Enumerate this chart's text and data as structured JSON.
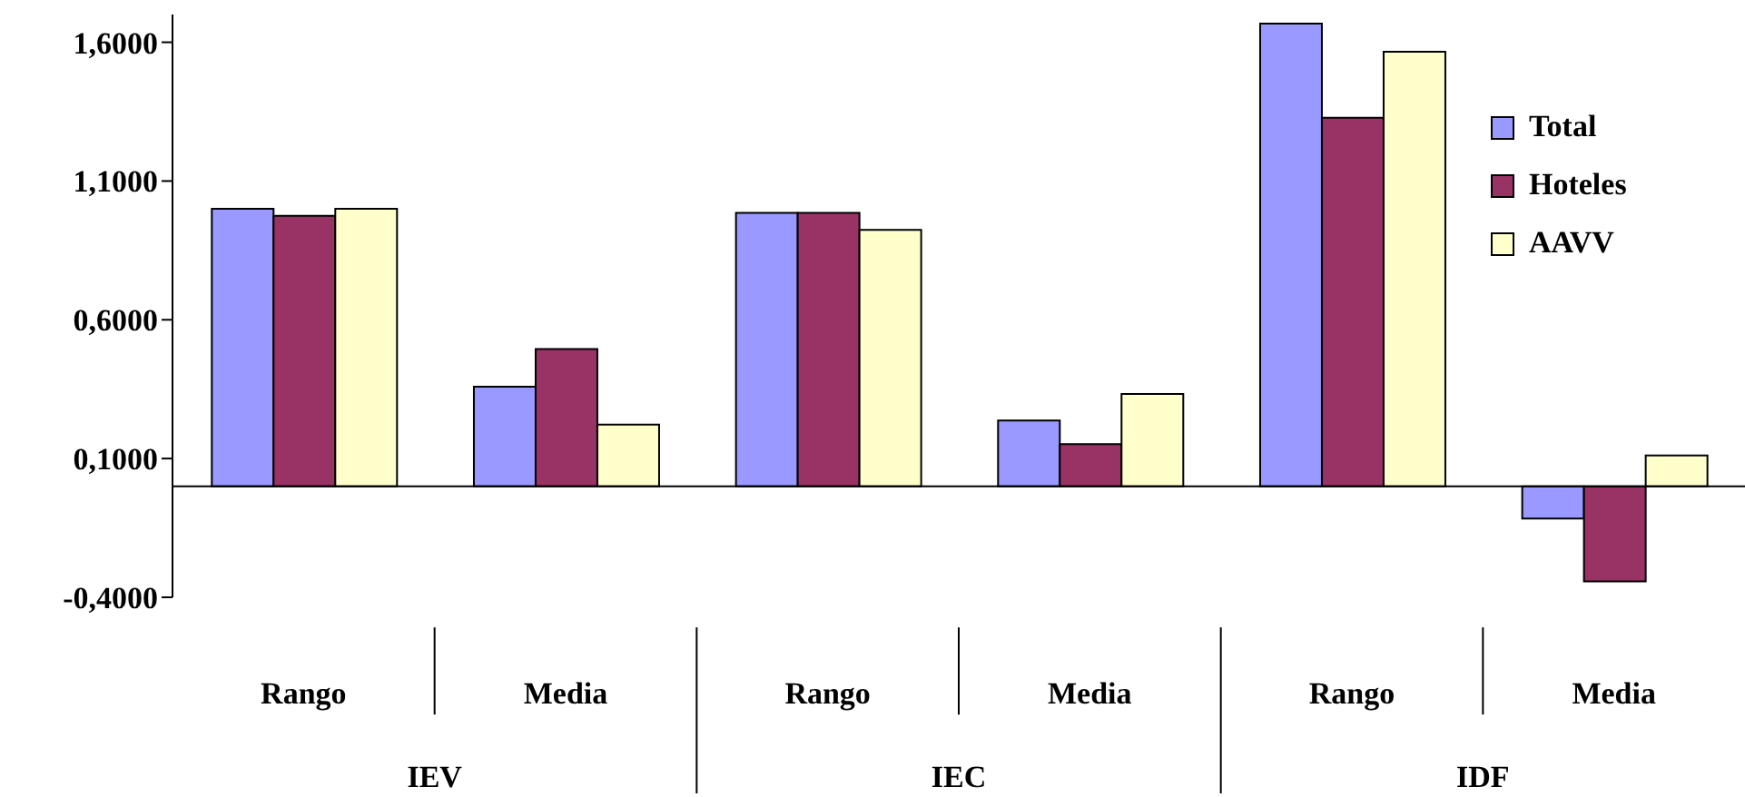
{
  "chart_data": {
    "type": "bar",
    "categories": [
      "Rango",
      "Media",
      "Rango",
      "Media",
      "Rango",
      "Media"
    ],
    "annotations": [
      "IEV",
      "IEC",
      "IDF"
    ],
    "series": [
      {
        "name": "Total",
        "color": "#9999ff",
        "values": [
          1.0,
          0.359,
          0.985,
          0.237,
          1.667,
          -0.116
        ]
      },
      {
        "name": "Hoteles",
        "color": "#993366",
        "values": [
          0.975,
          0.495,
          0.985,
          0.152,
          1.328,
          -0.343
        ]
      },
      {
        "name": "AAVV",
        "color": "#ffffcc",
        "values": [
          1.0,
          0.222,
          0.924,
          0.333,
          1.566,
          0.111
        ]
      }
    ],
    "ylim": [
      -0.4,
      1.7
    ],
    "yticks": [
      {
        "value": -0.4,
        "label": "-0,4000"
      },
      {
        "value": 0.1,
        "label": "0,1000"
      },
      {
        "value": 0.6,
        "label": "0,6000"
      },
      {
        "value": 1.1,
        "label": "1,1000"
      },
      {
        "value": 1.6,
        "label": "1,6000"
      }
    ],
    "grid": false,
    "legend": "right"
  }
}
